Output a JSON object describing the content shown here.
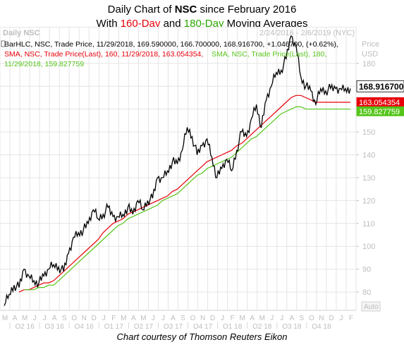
{
  "header": {
    "line1_prefix": "Daily Chart of ",
    "ticker": "NSC",
    "line1_suffix": " since February 2016",
    "line2_prefix": "With ",
    "sma1_label": "160-Day",
    "line2_mid": " and ",
    "sma2_label": "180-Day",
    "line2_suffix": " Moving Averages"
  },
  "caption": "Chart courtesy of Thomson Reuters Eikon",
  "colors": {
    "price": "#000000",
    "sma160": "#e8000b",
    "sma180": "#55c51a",
    "grid": "#e4e4e4",
    "axis_text": "#bdbdbd"
  },
  "chart_data": {
    "type": "line",
    "panel_title": "Daily NSC",
    "date_range_text": "2/24/2016 - 2/6/2019 (NYC)",
    "y_axis_title": "Price",
    "y_axis_unit": "USD",
    "auto_label": "Auto",
    "legend": [
      "BarHLC, NSC, Trade Price, 11/29/2018, 169.590000, 166.700000, 168.916700, +1.046700, (+0.62%),",
      "SMA, NSC, Trade Price(Last), 160, 11/29/2018, 163.054354,",
      "SMA, NSC, Trade Price(Last), 180,",
      "11/29/2018, 159.827759"
    ],
    "last_values": {
      "price": "168.916700",
      "sma160": "163.054354",
      "sma180": "159.827759"
    },
    "ylim": [
      72,
      196
    ],
    "y_ticks": [
      80,
      90,
      100,
      110,
      120,
      130,
      140,
      150,
      160,
      170,
      180
    ],
    "x_months": [
      "M",
      "A",
      "M",
      "J",
      "J",
      "A",
      "S",
      "O",
      "N",
      "D",
      "J",
      "F",
      "M",
      "A",
      "M",
      "J",
      "J",
      "A",
      "S",
      "O",
      "N",
      "D",
      "J",
      "F",
      "M",
      "A",
      "M",
      "J",
      "J",
      "A",
      "S",
      "O",
      "N",
      "D",
      "J",
      "F"
    ],
    "x_quarters": [
      "Q2 16",
      "Q3 16",
      "Q4 16",
      "Q1 17",
      "Q2 17",
      "Q3 17",
      "Q4 17",
      "Q1 18",
      "Q2 18",
      "Q3 18",
      "Q4 18"
    ],
    "x": [
      0,
      0.5,
      1,
      1.5,
      2,
      2.5,
      3,
      3.5,
      4,
      4.5,
      5,
      5.5,
      6,
      6.5,
      7,
      7.5,
      8,
      8.5,
      9,
      9.5,
      10,
      10.5,
      11,
      11.5,
      12,
      12.5,
      13,
      13.5,
      14,
      14.5,
      15,
      15.5,
      16,
      16.5,
      17,
      17.5,
      18,
      18.5,
      19,
      19.5,
      20,
      20.5,
      21,
      21.5,
      22,
      22.5,
      23,
      23.5,
      24,
      24.5,
      25,
      25.5,
      26,
      26.5,
      27,
      27.5,
      28,
      28.5,
      29,
      29.5,
      30,
      30.5,
      31,
      31.5,
      32,
      32.5,
      33,
      33.5,
      34,
      34.5,
      35
    ],
    "series": [
      {
        "name": "BarHLC, NSC, Trade Price",
        "values": [
          74,
          79,
          83,
          82,
          90,
          87,
          85,
          84,
          87,
          90,
          92,
          91,
          89,
          97,
          104,
          106,
          107,
          110,
          116,
          112,
          114,
          117,
          113,
          113,
          114,
          117,
          114,
          120,
          116,
          120,
          121,
          130,
          130,
          133,
          137,
          136,
          142,
          152,
          148,
          140,
          144,
          147,
          139,
          130,
          134,
          138,
          133,
          142,
          150,
          148,
          156,
          162,
          152,
          164,
          170,
          176,
          177,
          182,
          192,
          188,
          174,
          170,
          168,
          162,
          169,
          168,
          169,
          169,
          169,
          169,
          169
        ]
      },
      {
        "name": "SMA, NSC, Trade Price(Last), 160",
        "values": [
          null,
          null,
          null,
          80,
          81,
          81,
          82,
          83,
          84,
          84,
          85,
          87,
          89,
          91,
          93,
          95,
          97,
          99,
          101,
          103,
          106,
          108,
          110,
          111,
          112,
          114,
          115,
          116,
          117,
          118,
          119,
          120,
          121,
          122,
          124,
          125,
          127,
          129,
          131,
          133,
          135,
          137,
          138,
          139,
          140,
          141,
          142,
          144,
          145,
          147,
          149,
          151,
          153,
          155,
          157,
          159,
          161,
          163,
          165,
          166,
          166,
          165,
          164,
          163,
          163,
          163,
          163,
          163,
          163,
          163,
          163
        ]
      },
      {
        "name": "SMA, NSC, Trade Price(Last), 180",
        "values": [
          null,
          null,
          null,
          null,
          81,
          81,
          81,
          82,
          82,
          83,
          83,
          85,
          87,
          89,
          91,
          93,
          95,
          97,
          99,
          101,
          103,
          105,
          107,
          109,
          110,
          112,
          113,
          114,
          115,
          116,
          117,
          118,
          120,
          121,
          122,
          123,
          125,
          127,
          129,
          131,
          132,
          134,
          135,
          136,
          137,
          138,
          139,
          141,
          143,
          145,
          147,
          148,
          150,
          152,
          154,
          156,
          158,
          159,
          160,
          161,
          161,
          160,
          160,
          160,
          160,
          160,
          160,
          160,
          160,
          160,
          160
        ]
      }
    ]
  }
}
